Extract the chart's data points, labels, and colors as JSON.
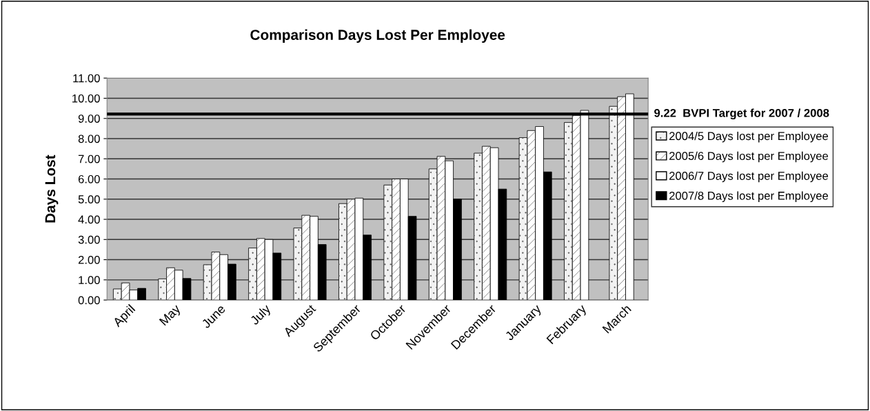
{
  "chart_data": {
    "type": "bar",
    "title": "Comparison Days Lost Per Employee",
    "ylabel": "Days Lost",
    "categories": [
      "April",
      "May",
      "June",
      "July",
      "August",
      "September",
      "October",
      "November",
      "December",
      "January",
      "February",
      "March"
    ],
    "series": [
      {
        "name": "2004/5 Days lost per Employee",
        "color": "#f2f2f2",
        "values": [
          0.55,
          1.05,
          1.75,
          2.58,
          3.57,
          4.78,
          5.7,
          6.5,
          7.28,
          8.05,
          8.8,
          9.6
        ]
      },
      {
        "name": "2005/6 Days lost per Employee",
        "color": "#ffffff",
        "values": [
          0.85,
          1.6,
          2.38,
          3.05,
          4.2,
          5.0,
          6.0,
          7.12,
          7.62,
          8.4,
          9.15,
          10.08
        ]
      },
      {
        "name": "2006/7 Days lost per Employee",
        "color": "#ffffff",
        "values": [
          0.5,
          1.48,
          2.25,
          3.0,
          4.15,
          5.05,
          6.0,
          6.9,
          7.55,
          8.6,
          9.4,
          10.22
        ]
      },
      {
        "name": "2007/8 Days lost per Employee",
        "color": "#000000",
        "values": [
          0.58,
          1.07,
          1.78,
          2.33,
          2.75,
          3.22,
          4.15,
          5.0,
          5.5,
          6.35,
          null,
          null
        ]
      }
    ],
    "ylim": [
      0,
      11
    ],
    "yticks": [
      {
        "value": 0,
        "label": "0.00"
      },
      {
        "value": 1,
        "label": "1.00"
      },
      {
        "value": 2,
        "label": "2.00"
      },
      {
        "value": 3,
        "label": "3.00"
      },
      {
        "value": 4,
        "label": "4.00"
      },
      {
        "value": 5,
        "label": "5.00"
      },
      {
        "value": 6,
        "label": "6.00"
      },
      {
        "value": 7,
        "label": "7.00"
      },
      {
        "value": 8,
        "label": "8.00"
      },
      {
        "value": 9,
        "label": "9.00"
      },
      {
        "value": 10,
        "label": "10.00"
      },
      {
        "value": 11,
        "label": "11.00"
      }
    ],
    "ref_lines": [
      {
        "axis": "y",
        "value": 9.22,
        "label": "9.22  BVPI Target for 2007 / 2008",
        "color": "#000000"
      }
    ],
    "grid": "y",
    "legend": "right"
  }
}
